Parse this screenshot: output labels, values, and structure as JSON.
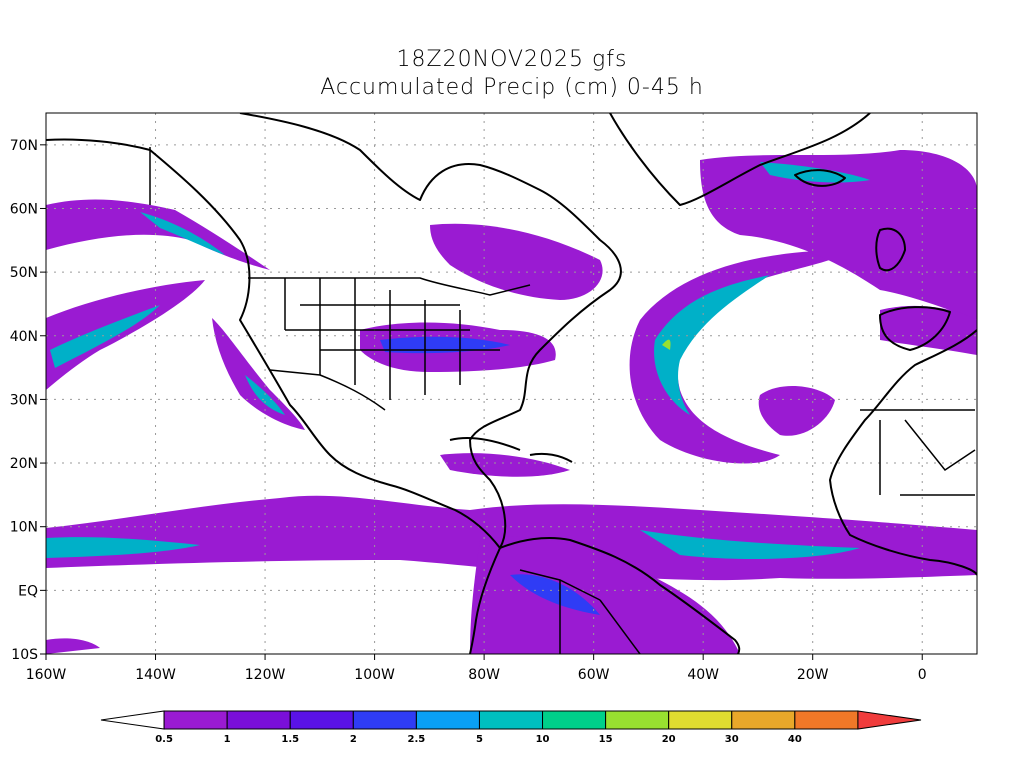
{
  "title": {
    "line1": "18Z20NOV2025 gfs",
    "line2": "Accumulated Precip (cm) 0-45 h"
  },
  "map": {
    "lon_range": [
      -160,
      10
    ],
    "lat_range": [
      -10,
      75
    ],
    "lon_ticks": [
      {
        "value": -160,
        "label": "160W"
      },
      {
        "value": -140,
        "label": "140W"
      },
      {
        "value": -120,
        "label": "120W"
      },
      {
        "value": -100,
        "label": "100W"
      },
      {
        "value": -80,
        "label": "80W"
      },
      {
        "value": -60,
        "label": "60W"
      },
      {
        "value": -40,
        "label": "40W"
      },
      {
        "value": -20,
        "label": "20W"
      },
      {
        "value": 0,
        "label": "0"
      }
    ],
    "lat_ticks": [
      {
        "value": 70,
        "label": "70N"
      },
      {
        "value": 60,
        "label": "60N"
      },
      {
        "value": 50,
        "label": "50N"
      },
      {
        "value": 40,
        "label": "40N"
      },
      {
        "value": 30,
        "label": "30N"
      },
      {
        "value": 20,
        "label": "20N"
      },
      {
        "value": 10,
        "label": "10N"
      },
      {
        "value": 0,
        "label": "EQ"
      },
      {
        "value": -10,
        "label": "10S"
      }
    ],
    "grid": true
  },
  "colorbar": {
    "levels": [
      "0.5",
      "1",
      "1.5",
      "2",
      "2.5",
      "5",
      "10",
      "15",
      "20",
      "30",
      "40"
    ],
    "colors": [
      "#ffffff",
      "#9a1bd2",
      "#7a0fd9",
      "#5a12e6",
      "#2f3cf5",
      "#0aa0f5",
      "#00c0c0",
      "#00d08a",
      "#98e030",
      "#e0dc30",
      "#e8a82a",
      "#f07828",
      "#f03c3c"
    ]
  }
}
